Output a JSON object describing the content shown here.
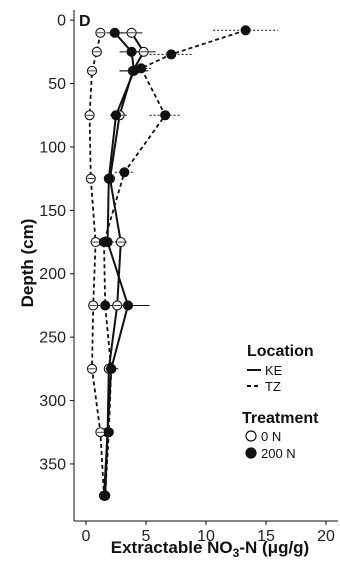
{
  "chart_data": {
    "type": "line",
    "panel_label": "D",
    "xlabel": "Extractable NO3-N (μg/g)",
    "xlabel_parts": {
      "pre": "Extractable NO",
      "sub": "3",
      "post": "-N (μg/g)"
    },
    "ylabel": "Depth (cm)",
    "xlim": [
      -1,
      21
    ],
    "ylim": [
      395,
      -8
    ],
    "x_ticks": [
      0,
      5,
      10,
      15,
      20
    ],
    "y_ticks": [
      0,
      50,
      100,
      150,
      200,
      250,
      300,
      350
    ],
    "grid": false,
    "legend": {
      "location_title": "Location",
      "location_entries": [
        {
          "label": "KE",
          "line": "solid"
        },
        {
          "label": "TZ",
          "line": "dashed"
        }
      ],
      "treatment_title": "Treatment",
      "treatment_entries": [
        {
          "label": "0 N",
          "marker": "open"
        },
        {
          "label": "200 N",
          "marker": "filled"
        }
      ],
      "placement": "bottom-right"
    },
    "series": [
      {
        "location": "KE",
        "treatment": "0 N",
        "line": "solid",
        "marker": "open",
        "points": [
          {
            "x": 3.8,
            "y": 10,
            "err": 0.9
          },
          {
            "x": 4.8,
            "y": 25,
            "err": 1.0
          },
          {
            "x": 3.9,
            "y": 40,
            "err": 1.1
          },
          {
            "x": 2.8,
            "y": 75,
            "err": 0.6
          },
          {
            "x": 2.0,
            "y": 125,
            "err": 0.3
          },
          {
            "x": 2.9,
            "y": 175,
            "err": 0.5
          },
          {
            "x": 2.6,
            "y": 225,
            "err": 0.6
          },
          {
            "x": 1.9,
            "y": 275,
            "err": 0.4
          },
          {
            "x": 1.8,
            "y": 325,
            "err": 0.3
          },
          {
            "x": 1.5,
            "y": 375,
            "err": 0.3
          }
        ]
      },
      {
        "location": "KE",
        "treatment": "200 N",
        "line": "solid",
        "marker": "filled",
        "points": [
          {
            "x": 2.4,
            "y": 10,
            "err": 0.7
          },
          {
            "x": 3.8,
            "y": 25,
            "err": 1.0
          },
          {
            "x": 4.0,
            "y": 40,
            "err": 1.2
          },
          {
            "x": 2.5,
            "y": 75,
            "err": 0.5
          },
          {
            "x": 1.9,
            "y": 125,
            "err": 0.3
          },
          {
            "x": 1.8,
            "y": 175,
            "err": 0.5
          },
          {
            "x": 3.5,
            "y": 225,
            "err": 1.8
          },
          {
            "x": 2.1,
            "y": 275,
            "err": 0.6
          },
          {
            "x": 1.8,
            "y": 325,
            "err": 0.5
          },
          {
            "x": 1.6,
            "y": 375,
            "err": 0.3
          }
        ]
      },
      {
        "location": "TZ",
        "treatment": "0 N",
        "line": "dashed",
        "marker": "open",
        "points": [
          {
            "x": 1.2,
            "y": 10,
            "err": 0.4
          },
          {
            "x": 0.9,
            "y": 25,
            "err": 0.2
          },
          {
            "x": 0.5,
            "y": 40,
            "err": 0.3
          },
          {
            "x": 0.3,
            "y": 75,
            "err": 0.2
          },
          {
            "x": 0.4,
            "y": 125,
            "err": 0.2
          },
          {
            "x": 0.8,
            "y": 175,
            "err": 0.3
          },
          {
            "x": 0.6,
            "y": 225,
            "err": 0.2
          },
          {
            "x": 0.5,
            "y": 275,
            "err": 0.3
          },
          {
            "x": 1.2,
            "y": 325,
            "err": 0.4
          },
          {
            "x": 1.5,
            "y": 375,
            "err": 0.4
          }
        ]
      },
      {
        "location": "TZ",
        "treatment": "200 N",
        "line": "dashed",
        "marker": "filled",
        "points": [
          {
            "x": 13.3,
            "y": 8,
            "err": 2.7
          },
          {
            "x": 7.1,
            "y": 27,
            "err": 1.8
          },
          {
            "x": 4.6,
            "y": 38,
            "err": 1.0
          },
          {
            "x": 6.6,
            "y": 75,
            "err": 1.3
          },
          {
            "x": 3.2,
            "y": 120,
            "err": 0.8
          },
          {
            "x": 1.5,
            "y": 175,
            "err": 0.5
          },
          {
            "x": 1.6,
            "y": 225,
            "err": 0.6
          },
          {
            "x": 2.1,
            "y": 275,
            "err": 0.5
          },
          {
            "x": 1.9,
            "y": 325,
            "err": 0.5
          },
          {
            "x": 1.6,
            "y": 375,
            "err": 0.3
          }
        ]
      }
    ]
  }
}
